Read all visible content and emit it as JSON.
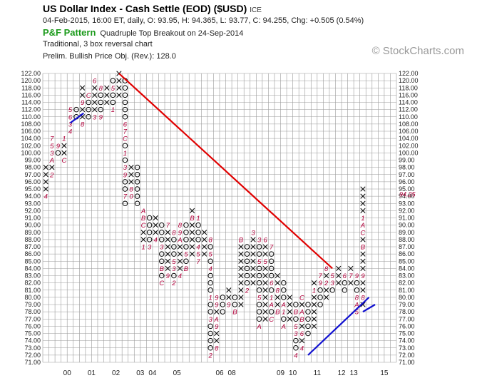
{
  "header": {
    "title": "US Dollar Index - Cash Settle (EOD) ($USD)",
    "exchange": "ICE",
    "quote_line": "04-Feb-2015, 16:00 ET, daily, O: 93.95, H: 94.365, L: 93.77, C: 94.255, Chg: +0.505 (0.54%)",
    "pf_label": "P&F Pattern",
    "pattern_text": "Quadruple Top Breakout on 24-Sep-2014",
    "line3": "Traditional, 3 box reversal chart",
    "line4": "Prelim. Bullish Price Obj. (Rev.): 128.0",
    "brand": "© StockCharts.com"
  },
  "colors": {
    "x_mark": "#000000",
    "o_mark": "#000000",
    "month_marker": "#b0003a",
    "resistance_line": "#e00000",
    "support_line": "#1010d0",
    "grid": "#9a9a9a"
  },
  "chart_data": {
    "type": "point_and_figure",
    "box_size": 1,
    "reversal": 3,
    "ylim": [
      71,
      122
    ],
    "y_ticks": [
      71,
      72,
      73,
      74,
      75,
      76,
      77,
      78,
      79,
      80,
      81,
      82,
      83,
      84,
      85,
      86,
      87,
      88,
      89,
      90,
      91,
      92,
      93,
      94,
      95,
      96,
      97,
      98,
      99,
      100,
      102,
      104,
      106,
      108,
      110,
      112,
      114,
      116,
      118,
      120,
      122
    ],
    "y_tick_labels": [
      "71.00",
      "72.00",
      "73.00",
      "74.00",
      "75.00",
      "76.00",
      "77.00",
      "78.00",
      "79.00",
      "80.00",
      "81.00",
      "82.00",
      "83.00",
      "84.00",
      "85.00",
      "86.00",
      "87.00",
      "88.00",
      "89.00",
      "90.00",
      "91.00",
      "92.00",
      "93.00",
      "94.00",
      "95.00",
      "96.00",
      "97.00",
      "98.00",
      "99.00",
      "100.00",
      "102.00",
      "104.00",
      "106.00",
      "108.00",
      "110.00",
      "112.00",
      "114.00",
      "116.00",
      "118.00",
      "120.00",
      "122.00"
    ],
    "current_price_label": "94.25",
    "current_price": 94.25,
    "x_labels": [
      {
        "col": 3.5,
        "text": "00"
      },
      {
        "col": 7.5,
        "text": "01"
      },
      {
        "col": 11.5,
        "text": "02"
      },
      {
        "col": 15.5,
        "text": "03"
      },
      {
        "col": 17.5,
        "text": "04"
      },
      {
        "col": 21.5,
        "text": "05"
      },
      {
        "col": 28.5,
        "text": "06"
      },
      {
        "col": 30.5,
        "text": "08"
      },
      {
        "col": 38.5,
        "text": "09"
      },
      {
        "col": 40.5,
        "text": "10"
      },
      {
        "col": 44.5,
        "text": "11"
      },
      {
        "col": 48.5,
        "text": "12"
      },
      {
        "col": 50.5,
        "text": "13"
      },
      {
        "col": 55.5,
        "text": "15"
      }
    ],
    "columns": [
      {
        "t": "X",
        "lo": 94,
        "hi": 98,
        "m": {
          "94.00": "4"
        }
      },
      {
        "t": "X",
        "lo": 97,
        "hi": 104,
        "m": {
          "97": "2",
          "99": "A",
          "100": "3",
          "102": "5",
          "104": "7"
        }
      },
      {
        "t": "O",
        "lo": 100,
        "hi": 102,
        "m": {
          "102": "9"
        }
      },
      {
        "t": "X",
        "lo": 99,
        "hi": 104,
        "m": {
          "99": "C",
          "104": "1"
        }
      },
      {
        "t": "X",
        "lo": 106,
        "hi": 112,
        "m": {
          "106": "4",
          "108": "3",
          "110": "6",
          "112": "5"
        }
      },
      {
        "t": "O",
        "lo": 110,
        "hi": 112,
        "m": {}
      },
      {
        "t": "X",
        "lo": 108,
        "hi": 118,
        "m": {
          "108": "8",
          "114": "9",
          "116": "X",
          "118": "X"
        }
      },
      {
        "t": "O",
        "lo": 110,
        "hi": 116,
        "m": {
          "116": "C"
        }
      },
      {
        "t": "X",
        "lo": 110,
        "hi": 120,
        "m": {
          "110": "3",
          "120": "6"
        }
      },
      {
        "t": "O",
        "lo": 110,
        "hi": 118,
        "m": {
          "110": "9",
          "118": "8"
        }
      },
      {
        "t": "X",
        "lo": 114,
        "hi": 118,
        "m": {
          "114": "X"
        }
      },
      {
        "t": "O",
        "lo": 112,
        "hi": 120,
        "m": {
          "112": "1",
          "118": "5"
        }
      },
      {
        "t": "X",
        "lo": 116,
        "hi": 122,
        "m": {}
      },
      {
        "t": "O",
        "lo": 93,
        "hi": 120,
        "m": {
          "98": "3",
          "100": "1",
          "104": "C",
          "106": "7",
          "108": "6",
          "97": "9",
          "94": "7"
        }
      },
      {
        "t": "X",
        "lo": 94,
        "hi": 98,
        "m": {
          "95": "8",
          "94": "0"
        }
      },
      {
        "t": "O",
        "lo": 93,
        "hi": 98,
        "m": {}
      },
      {
        "t": "X",
        "lo": 87,
        "hi": 92,
        "m": {
          "87": "1",
          "90": "C",
          "91": "B",
          "92": "A"
        }
      },
      {
        "t": "O",
        "lo": 87,
        "hi": 91,
        "m": {
          "87": "3"
        }
      },
      {
        "t": "X",
        "lo": 88,
        "hi": 91,
        "m": {
          "88": "4"
        }
      },
      {
        "t": "O",
        "lo": 82,
        "hi": 90,
        "m": {
          "82": "C",
          "84": "B",
          "87": "3"
        }
      },
      {
        "t": "X",
        "lo": 83,
        "hi": 90,
        "m": {
          "83": "9",
          "90": "7"
        }
      },
      {
        "t": "O",
        "lo": 82,
        "hi": 89,
        "m": {
          "82": "2",
          "84": "3",
          "85": "5",
          "89": "8"
        }
      },
      {
        "t": "X",
        "lo": 83,
        "hi": 90,
        "m": {
          "83": "4",
          "88": "A",
          "89": "9",
          "90": "8"
        }
      },
      {
        "t": "O",
        "lo": 84,
        "hi": 90,
        "m": {
          "84": "B",
          "86": "5"
        }
      },
      {
        "t": "X",
        "lo": 86,
        "hi": 92,
        "m": {
          "91": "B",
          "92": "X"
        }
      },
      {
        "t": "O",
        "lo": 85,
        "hi": 91,
        "m": {
          "85": "7",
          "86": "5",
          "87": "4",
          "91": "1"
        }
      },
      {
        "t": "X",
        "lo": 86,
        "hi": 89,
        "m": {}
      },
      {
        "t": "O",
        "lo": 72,
        "hi": 88,
        "m": {
          "72": "2",
          "77": "3",
          "80": "1",
          "84": "4",
          "86": "5",
          "88": "8"
        }
      },
      {
        "t": "X",
        "lo": 73,
        "hi": 80,
        "m": {
          "73": "8",
          "76": "9",
          "77": "A",
          "79": "9",
          "80": "9"
        }
      },
      {
        "t": "O",
        "lo": 78,
        "hi": 80,
        "m": {}
      },
      {
        "t": "X",
        "lo": 79,
        "hi": 81,
        "m": {
          "79": "9"
        }
      },
      {
        "t": "O",
        "lo": 78,
        "hi": 80,
        "m": {
          "78": "B"
        }
      },
      {
        "t": "X",
        "lo": 79,
        "hi": 88,
        "m": {
          "88": "B"
        }
      },
      {
        "t": "O",
        "lo": 81,
        "hi": 87,
        "m": {
          "81": "2"
        }
      },
      {
        "t": "X",
        "lo": 82,
        "hi": 89,
        "m": {
          "89": "3"
        }
      },
      {
        "t": "O",
        "lo": 76,
        "hi": 88,
        "m": {
          "76": "A",
          "80": "5",
          "85": "5",
          "88": "3"
        }
      },
      {
        "t": "X",
        "lo": 77,
        "hi": 88,
        "m": {
          "88": "6",
          "85": "5"
        }
      },
      {
        "t": "O",
        "lo": 77,
        "hi": 87,
        "m": {
          "77": "C",
          "79": "A",
          "80": "1",
          "82": "6",
          "87": "7"
        }
      },
      {
        "t": "X",
        "lo": 78,
        "hi": 83,
        "m": {
          "78": "B",
          "81": "8"
        }
      },
      {
        "t": "O",
        "lo": 76,
        "hi": 82,
        "m": {
          "76": "A",
          "78": "1",
          "79": "A"
        }
      },
      {
        "t": "X",
        "lo": 77,
        "hi": 80,
        "m": {}
      },
      {
        "t": "O",
        "lo": 72,
        "hi": 79,
        "m": {
          "72": "4",
          "75": "3",
          "76": "5",
          "78": "B"
        }
      },
      {
        "t": "X",
        "lo": 73,
        "hi": 80,
        "m": {
          "73": "4",
          "75": "6",
          "77": "B",
          "78": "A",
          "80": "C"
        }
      },
      {
        "t": "O",
        "lo": 75,
        "hi": 79,
        "m": {}
      },
      {
        "t": "X",
        "lo": 76,
        "hi": 82,
        "m": {
          "81": "1"
        }
      },
      {
        "t": "O",
        "lo": 79,
        "hi": 83,
        "m": {
          "82": "9",
          "83": "7"
        }
      },
      {
        "t": "X",
        "lo": 80,
        "hi": 84,
        "m": {
          "82": "2",
          "84": "8"
        }
      },
      {
        "t": "O",
        "lo": 81,
        "hi": 83,
        "m": {
          "82": "3",
          "83": "5"
        }
      },
      {
        "t": "X",
        "lo": 82,
        "hi": 84,
        "m": {}
      },
      {
        "t": "O",
        "lo": 81,
        "hi": 83,
        "m": {
          "83": "6"
        }
      },
      {
        "t": "X",
        "lo": 82,
        "hi": 84,
        "m": {
          "83": "7"
        }
      },
      {
        "t": "O",
        "lo": 78,
        "hi": 83,
        "m": {
          "78": "5",
          "79": "A",
          "80": "8",
          "83": "9"
        }
      },
      {
        "t": "X",
        "lo": 79,
        "hi": 95,
        "m": {
          "80": "8",
          "83": "9",
          "87": "B",
          "89": "C",
          "90": "A",
          "91": "1"
        }
      }
    ],
    "lines": [
      {
        "kind": "resistance",
        "from": [
          12,
          122
        ],
        "to": [
          47,
          84
        ]
      },
      {
        "kind": "support",
        "from": [
          4,
          108.3
        ],
        "to": [
          6.2,
          111
        ]
      },
      {
        "kind": "support",
        "from": [
          43,
          72
        ],
        "to": [
          53,
          80
        ]
      },
      {
        "kind": "support",
        "from": [
          52,
          78
        ],
        "to": [
          54,
          79
        ]
      }
    ]
  }
}
